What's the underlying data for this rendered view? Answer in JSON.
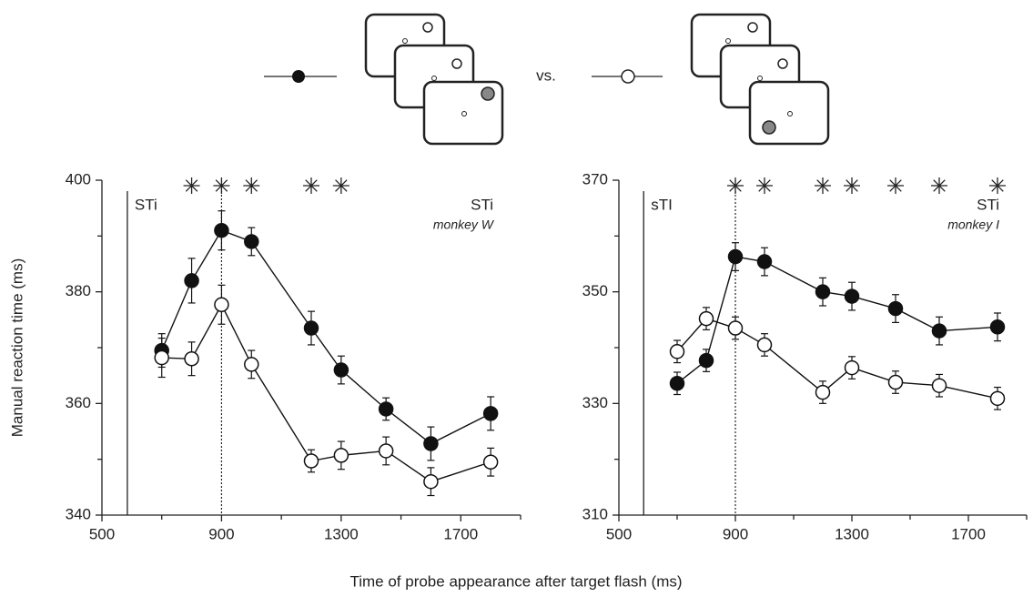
{
  "figure": {
    "xlabel": "Time of probe appearance after target flash (ms)",
    "ylabel": "Manual reaction time  (ms)",
    "legend_separator": "vs."
  },
  "chart_data": [
    {
      "type": "line",
      "onset_label": "STi",
      "panel_label": "STi",
      "subject": "monkey W",
      "x": [
        700,
        800,
        900,
        1000,
        1200,
        1300,
        1450,
        1600,
        1800
      ],
      "series": [
        {
          "marker": "filled",
          "color": "#111111",
          "values": [
            369.5,
            382,
            391,
            389,
            373.5,
            366,
            359,
            352.8,
            358.2
          ],
          "errors": [
            3,
            4,
            3.5,
            2.5,
            3,
            2.5,
            2,
            3,
            3
          ]
        },
        {
          "marker": "open",
          "color": "#111111",
          "values": [
            368.2,
            368,
            377.7,
            367,
            349.7,
            350.7,
            351.5,
            346,
            349.5
          ],
          "errors": [
            3.5,
            3,
            3.5,
            2.5,
            2,
            2.5,
            2.5,
            2.5,
            2.5
          ]
        }
      ],
      "asterisks": [
        800,
        900,
        1000,
        1200,
        1300
      ],
      "onset_x": 585,
      "reference_x": 900,
      "xlim": [
        500,
        1900
      ],
      "xticks": [
        500,
        900,
        1300,
        1700
      ],
      "xminor": [
        700,
        1100,
        1500,
        1900
      ],
      "ylim": [
        340,
        400
      ],
      "yticks": [
        340,
        360,
        380,
        400
      ],
      "yminor": [
        350,
        370,
        390
      ]
    },
    {
      "type": "line",
      "onset_label": "sTI",
      "panel_label": "STi",
      "subject": "monkey I",
      "x": [
        700,
        800,
        900,
        1000,
        1200,
        1300,
        1450,
        1600,
        1800
      ],
      "series": [
        {
          "marker": "filled",
          "color": "#111111",
          "values": [
            333.6,
            337.7,
            356.3,
            355.4,
            350,
            349.2,
            347,
            343,
            343.7
          ],
          "errors": [
            2,
            2,
            2.5,
            2.5,
            2.5,
            2.5,
            2.5,
            2.5,
            2.5
          ]
        },
        {
          "marker": "open",
          "color": "#111111",
          "values": [
            339.3,
            345.2,
            343.5,
            340.5,
            332,
            336.4,
            333.8,
            333.2,
            330.9
          ],
          "errors": [
            2,
            2,
            2,
            2,
            2,
            2,
            2,
            2,
            2
          ]
        }
      ],
      "asterisks": [
        900,
        1000,
        1200,
        1300,
        1450,
        1600,
        1800
      ],
      "onset_x": 585,
      "reference_x": 900,
      "xlim": [
        500,
        1900
      ],
      "xticks": [
        500,
        900,
        1300,
        1700
      ],
      "xminor": [
        700,
        1100,
        1500,
        1900
      ],
      "ylim": [
        310,
        370
      ],
      "yticks": [
        310,
        330,
        350,
        370
      ],
      "yminor": [
        320,
        340,
        360
      ]
    }
  ]
}
